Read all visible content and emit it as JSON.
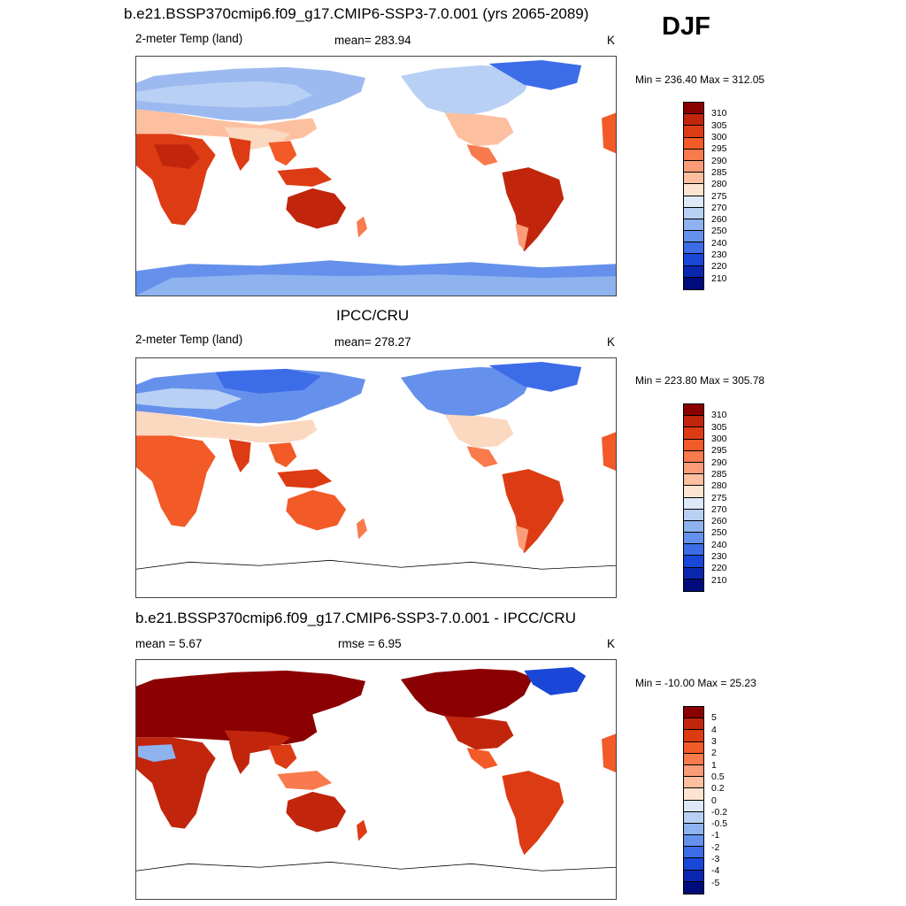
{
  "season": "DJF",
  "panels": [
    {
      "title": "b.e21.BSSP370cmip6.f09_g17.CMIP6-SSP3-7.0.001 (yrs 2065-2089)",
      "left_label": "2-meter Temp (land)",
      "center_label": "mean= 283.94",
      "unit": "K",
      "minmax": "Min = 236.40 Max = 312.05"
    },
    {
      "title": "IPCC/CRU",
      "left_label": "2-meter Temp (land)",
      "center_label": "mean= 278.27",
      "unit": "K",
      "minmax": "Min = 223.80 Max = 305.78"
    },
    {
      "title": "b.e21.BSSP370cmip6.f09_g17.CMIP6-SSP3-7.0.001 - IPCC/CRU",
      "left_label": "mean =   5.67",
      "center_label": "rmse =   6.95",
      "unit": "K",
      "minmax": "Min = -10.00 Max =  25.23"
    }
  ],
  "colorbars": {
    "abs": {
      "labels": [
        "310",
        "305",
        "300",
        "295",
        "290",
        "285",
        "280",
        "275",
        "270",
        "260",
        "250",
        "240",
        "230",
        "220",
        "210"
      ],
      "colors": [
        "#8b0000",
        "#c1260d",
        "#dd3b14",
        "#f25a28",
        "#f97a4c",
        "#fb9c78",
        "#fcbf9f",
        "#fde4d2",
        "#dde9f8",
        "#b8d0f4",
        "#8eb3ef",
        "#6591ec",
        "#3d6ce8",
        "#1a47d8",
        "#0b27b0",
        "#000c7c"
      ]
    },
    "diff": {
      "labels": [
        "5",
        "4",
        "3",
        "2",
        "1",
        "0.5",
        "0.2",
        "0",
        "-0.2",
        "-0.5",
        "-1",
        "-2",
        "-3",
        "-4",
        "-5"
      ],
      "colors": [
        "#8b0000",
        "#c1260d",
        "#dd3b14",
        "#f25a28",
        "#f97a4c",
        "#fb9c78",
        "#fcbf9f",
        "#fde4d2",
        "#dde9f8",
        "#b8d0f4",
        "#8eb3ef",
        "#6591ec",
        "#3d6ce8",
        "#1a47d8",
        "#0b27b0",
        "#000c7c"
      ]
    }
  },
  "chart_data": [
    {
      "type": "heatmap",
      "title": "b.e21.BSSP370cmip6.f09_g17.CMIP6-SSP3-7.0.001 (yrs 2065-2089)",
      "variable": "2-meter Temp (land)",
      "units": "K",
      "mean": 283.94,
      "min": 236.4,
      "max": 312.05,
      "contour_levels": [
        210,
        220,
        230,
        240,
        250,
        260,
        270,
        275,
        280,
        285,
        290,
        295,
        300,
        305,
        310
      ]
    },
    {
      "type": "heatmap",
      "title": "IPCC/CRU",
      "variable": "2-meter Temp (land)",
      "units": "K",
      "mean": 278.27,
      "min": 223.8,
      "max": 305.78,
      "contour_levels": [
        210,
        220,
        230,
        240,
        250,
        260,
        270,
        275,
        280,
        285,
        290,
        295,
        300,
        305,
        310
      ]
    },
    {
      "type": "heatmap",
      "title": "b.e21.BSSP370cmip6.f09_g17.CMIP6-SSP3-7.0.001 - IPCC/CRU",
      "units": "K",
      "mean": 5.67,
      "rmse": 6.95,
      "min": -10.0,
      "max": 25.23,
      "contour_levels": [
        -5,
        -4,
        -3,
        -2,
        -1,
        -0.5,
        -0.2,
        0,
        0.2,
        0.5,
        1,
        2,
        3,
        4,
        5
      ]
    }
  ]
}
